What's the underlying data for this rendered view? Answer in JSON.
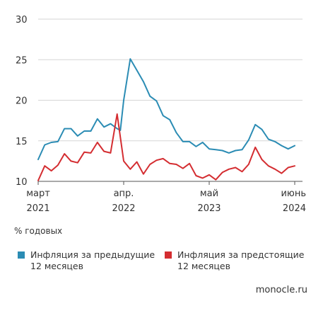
{
  "chart_data": {
    "type": "line",
    "y_ticks": [
      10,
      15,
      20,
      25,
      30
    ],
    "ylim": [
      10,
      30
    ],
    "x_ticks": [
      {
        "label1": "март",
        "label2": "2021",
        "x": 0
      },
      {
        "label1": "апр.",
        "label2": "2022",
        "x": 13
      },
      {
        "label1": "май",
        "label2": "2023",
        "x": 26
      },
      {
        "label1": "июнь",
        "label2": "2024",
        "x": 39
      }
    ],
    "xlim": [
      0,
      39
    ],
    "grid": "horizontal",
    "series": [
      {
        "name": "Инфляция за предыдущие 12 месяцев",
        "color": "#2b8cb4",
        "x": [
          0,
          1,
          2,
          3,
          4,
          5,
          6,
          7,
          8,
          9,
          10,
          11,
          12,
          12.5,
          13,
          14,
          15,
          16,
          17,
          18,
          19,
          20,
          21,
          22,
          23,
          24,
          25,
          26,
          27,
          28,
          29,
          30,
          31,
          32,
          33,
          34,
          35,
          36,
          37,
          38,
          39
        ],
        "values": [
          12.7,
          14.5,
          14.8,
          14.9,
          16.5,
          16.5,
          15.6,
          16.2,
          16.2,
          17.7,
          16.7,
          17.1,
          16.5,
          16.3,
          20.0,
          25.1,
          23.7,
          22.3,
          20.5,
          19.9,
          18.1,
          17.6,
          16.0,
          14.9,
          14.9,
          14.3,
          14.8,
          14.0,
          13.9,
          13.8,
          13.5,
          13.8,
          13.9,
          15.1,
          17.0,
          16.4,
          15.2,
          14.9,
          14.4,
          14.0,
          14.4
        ]
      },
      {
        "name": "Инфляция за предстоящие 12 месяцев",
        "color": "#d42d31",
        "x": [
          0,
          1,
          2,
          3,
          4,
          5,
          6,
          7,
          8,
          9,
          10,
          11,
          12,
          13,
          14,
          15,
          16,
          17,
          18,
          19,
          20,
          21,
          22,
          23,
          24,
          25,
          26,
          27,
          28,
          29,
          30,
          31,
          32,
          33,
          34,
          35,
          36,
          37,
          38,
          39
        ],
        "values": [
          10.1,
          11.9,
          11.3,
          12.0,
          13.4,
          12.5,
          12.3,
          13.6,
          13.5,
          14.8,
          13.7,
          13.5,
          18.3,
          12.5,
          11.5,
          12.4,
          10.9,
          12.1,
          12.6,
          12.8,
          12.2,
          12.1,
          11.6,
          12.2,
          10.7,
          10.4,
          10.8,
          10.2,
          11.1,
          11.5,
          11.7,
          11.2,
          12.1,
          14.2,
          12.7,
          11.9,
          11.5,
          11.0,
          11.7,
          11.9
        ]
      }
    ]
  },
  "unit_label": "% годовых",
  "legend": [
    {
      "text": "Инфляция за предыдущие\n12 месяцев",
      "color": "#2b8cb4"
    },
    {
      "text": "Инфляция за предстоящие\n12 месяцев",
      "color": "#d42d31"
    }
  ],
  "source": "monocle.ru"
}
